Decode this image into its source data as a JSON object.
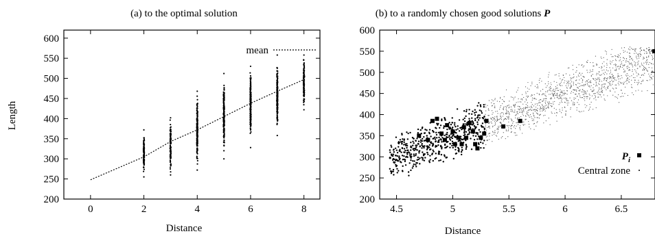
{
  "chart_data": [
    {
      "type": "scatter",
      "title": "(a)   to the optimal solution",
      "xlabel": "Distance",
      "ylabel": "Length",
      "xlim": [
        -1,
        8.6
      ],
      "ylim": [
        200,
        620
      ],
      "xticks": [
        "0",
        "2",
        "4",
        "6",
        "8"
      ],
      "yticks": [
        "200",
        "250",
        "300",
        "350",
        "400",
        "450",
        "500",
        "550",
        "600"
      ],
      "legend_position": "top-right",
      "grid": false,
      "series": [
        {
          "name": "mean",
          "style": "dotted-line",
          "x": [
            0,
            2,
            3,
            4,
            5,
            6,
            7,
            8
          ],
          "y": [
            248,
            305,
            343,
            372,
            405,
            438,
            468,
            497
          ]
        },
        {
          "style": "points",
          "columns": [
            {
              "x": 2,
              "min": 255,
              "max": 372
            },
            {
              "x": 3,
              "min": 260,
              "max": 402
            },
            {
              "x": 4,
              "min": 272,
              "max": 468
            },
            {
              "x": 5,
              "min": 300,
              "max": 512
            },
            {
              "x": 6,
              "min": 328,
              "max": 530
            },
            {
              "x": 7,
              "min": 358,
              "max": 558
            },
            {
              "x": 8,
              "min": 422,
              "max": 558
            }
          ]
        }
      ]
    },
    {
      "type": "scatter",
      "title": "(b)   to a randomly chosen good solutions P",
      "title_italic_suffix": "P",
      "xlabel": "Distance",
      "ylabel": "",
      "xlim": [
        4.35,
        6.8
      ],
      "ylim": [
        200,
        600
      ],
      "xticks": [
        "4.5",
        "5",
        "5.5",
        "6",
        "6.5"
      ],
      "yticks": [
        "200",
        "250",
        "300",
        "350",
        "400",
        "450",
        "500",
        "550",
        "600"
      ],
      "legend_position": "bottom-right",
      "grid": false,
      "legend": [
        {
          "label": "P",
          "subscript": "i",
          "marker": "square"
        },
        {
          "label": "Central zone",
          "marker": "dot"
        }
      ],
      "series": [
        {
          "name": "P_i",
          "style": "squares",
          "x": [
            4.7,
            4.78,
            4.82,
            4.86,
            4.9,
            4.93,
            4.95,
            5.0,
            5.02,
            5.05,
            5.08,
            5.1,
            5.12,
            5.15,
            5.18,
            5.2,
            5.22,
            5.25,
            5.28,
            5.3,
            5.45,
            5.6
          ],
          "y": [
            350,
            340,
            385,
            390,
            355,
            340,
            375,
            360,
            330,
            345,
            330,
            370,
            345,
            380,
            360,
            330,
            320,
            345,
            355,
            385,
            372,
            385
          ]
        },
        {
          "name": "Central zone",
          "style": "small-dots",
          "x_range": [
            4.45,
            6.8
          ],
          "y_range": [
            255,
            560
          ]
        }
      ]
    }
  ]
}
